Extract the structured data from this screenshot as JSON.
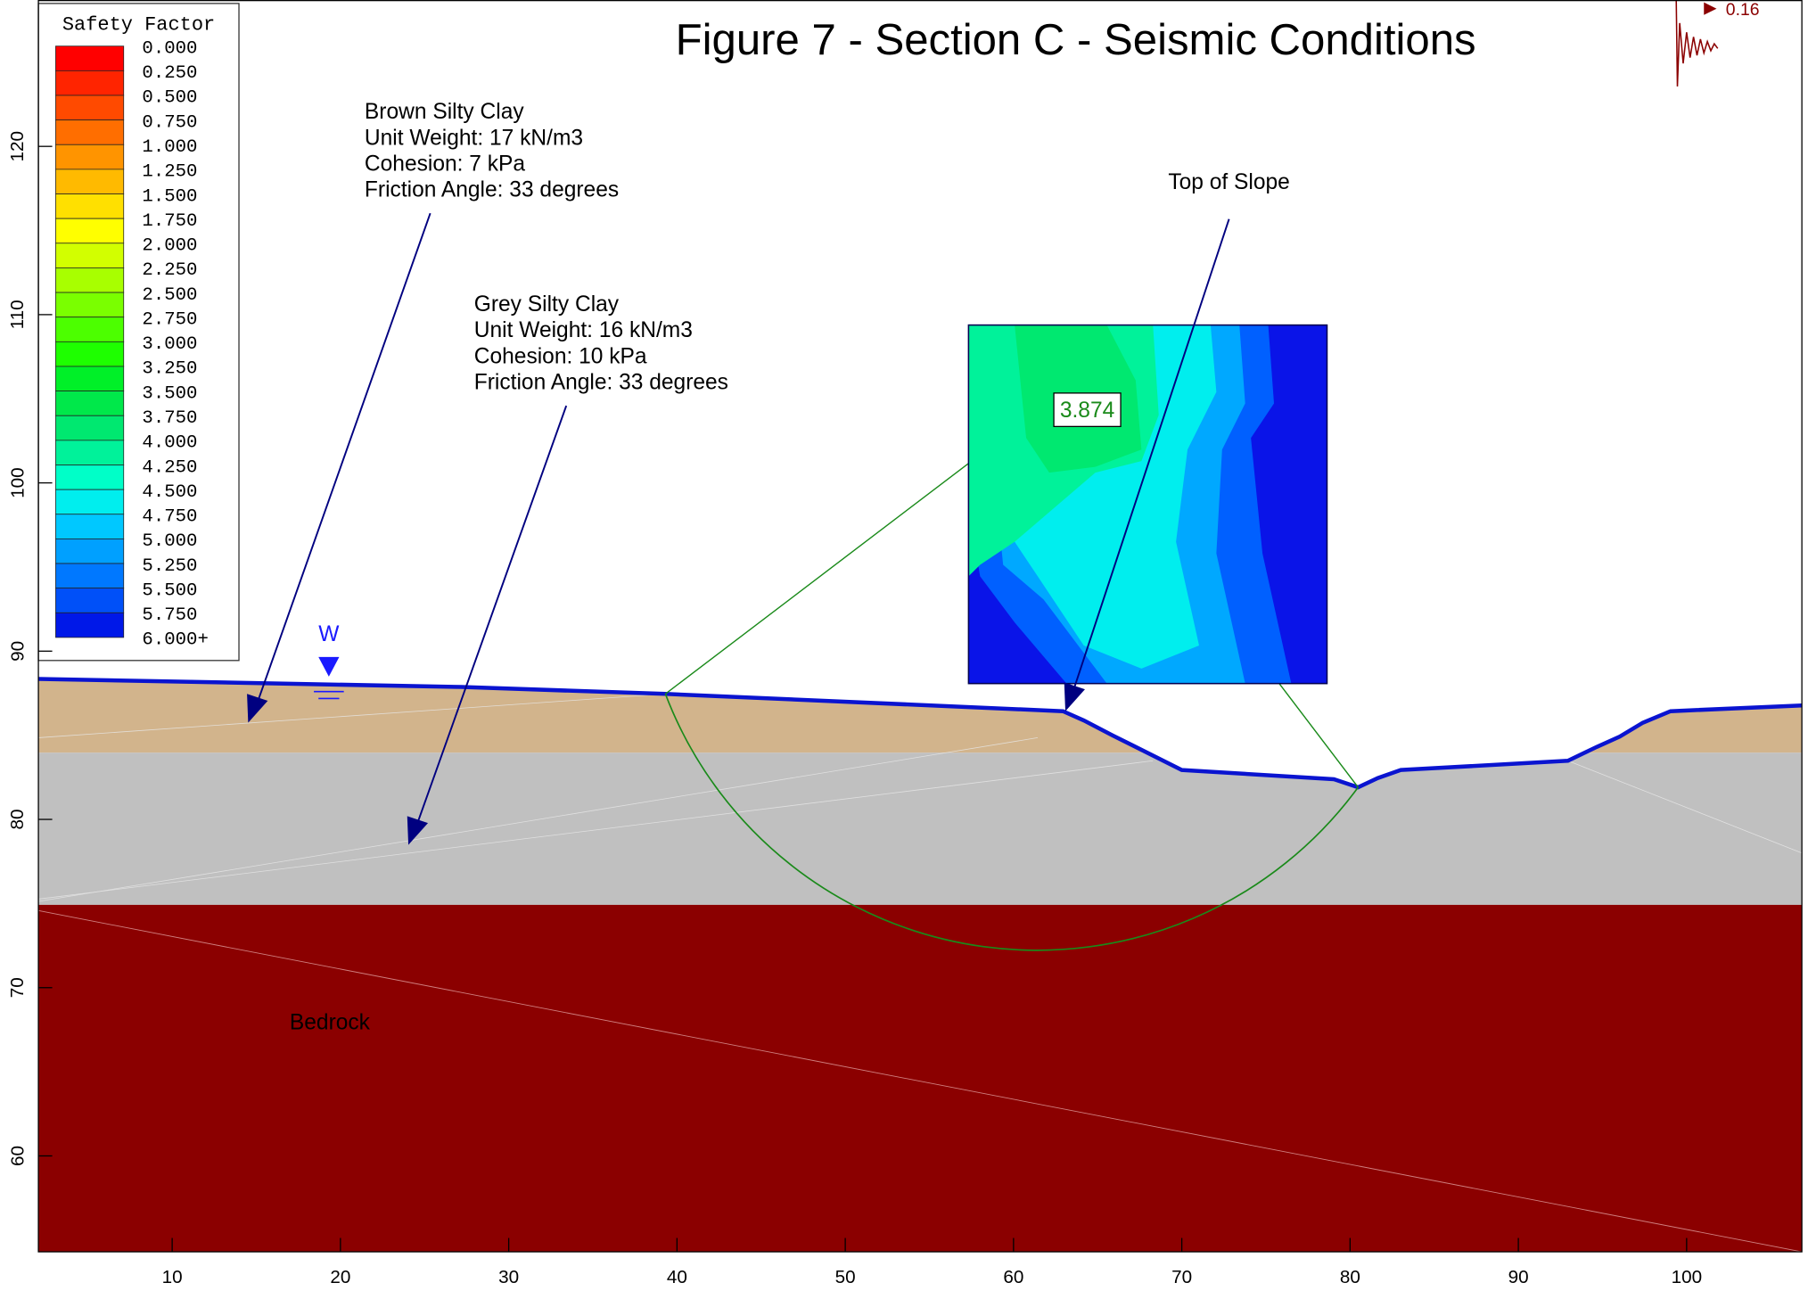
{
  "title": "Figure 7 - Section C - Seismic Conditions",
  "legend": {
    "title": "Safety Factor",
    "labels": [
      "0.000",
      "0.250",
      "0.500",
      "0.750",
      "1.000",
      "1.250",
      "1.500",
      "1.750",
      "2.000",
      "2.250",
      "2.500",
      "2.750",
      "3.000",
      "3.250",
      "3.500",
      "3.750",
      "4.000",
      "4.250",
      "4.500",
      "4.750",
      "5.000",
      "5.250",
      "5.500",
      "5.750",
      "6.000+"
    ],
    "colors": [
      "#ff0000",
      "#ff2400",
      "#ff4a00",
      "#ff6e00",
      "#ff9400",
      "#ffba00",
      "#ffe000",
      "#ffff00",
      "#d2ff00",
      "#a8ff00",
      "#7aff00",
      "#4cff00",
      "#1eff00",
      "#00f028",
      "#00e84a",
      "#00e870",
      "#00f29a",
      "#00ffc8",
      "#00eeee",
      "#00c8ff",
      "#00a0ff",
      "#0078ff",
      "#0050f8",
      "#0018e8"
    ]
  },
  "axes": {
    "xlim": [
      2.05,
      106.85
    ],
    "ylim": [
      54.3,
      128.7
    ],
    "xticks": [
      10,
      20,
      30,
      40,
      50,
      60,
      70,
      80,
      90,
      100
    ],
    "yticks": [
      60,
      70,
      80,
      90,
      100,
      110,
      120
    ]
  },
  "materials": [
    {
      "lines": [
        "Brown Silty Clay",
        "Unit Weight: 17 kN/m3",
        "Cohesion: 7 kPa",
        "Friction Angle: 33 degrees"
      ]
    },
    {
      "lines": [
        "Grey Silty Clay",
        "Unit Weight: 16 kN/m3",
        "Cohesion: 10 kPa",
        "Friction Angle: 33 degrees"
      ]
    }
  ],
  "top_of_slope": "Top of Slope",
  "bedrock": "Bedrock",
  "water_table": "W",
  "factor_of_safety": "3.874",
  "seismic_coefficient": "0.16"
}
